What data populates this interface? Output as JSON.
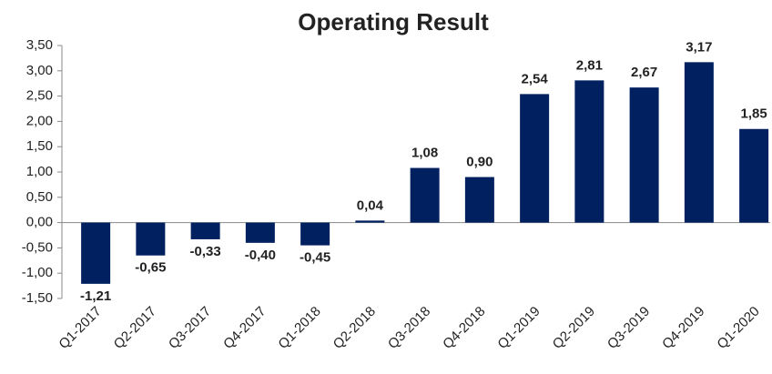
{
  "chart_data": {
    "type": "bar",
    "title": "Operating Result",
    "categories": [
      "Q1-2017",
      "Q2-2017",
      "Q3-2017",
      "Q4-2017",
      "Q1-2018",
      "Q2-2018",
      "Q3-2018",
      "Q4-2018",
      "Q1-2019",
      "Q2-2019",
      "Q3-2019",
      "Q4-2019",
      "Q1-2020"
    ],
    "values": [
      -1.21,
      -0.65,
      -0.33,
      -0.4,
      -0.45,
      0.04,
      1.08,
      0.9,
      2.54,
      2.81,
      2.67,
      3.17,
      1.85
    ],
    "value_labels": [
      "-1,21",
      "-0,65",
      "-0,33",
      "-0,40",
      "-0,45",
      "0,04",
      "1,08",
      "0,90",
      "2,54",
      "2,81",
      "2,67",
      "3,17",
      "1,85"
    ],
    "color": "#002060",
    "ylim": [
      -1.5,
      3.5
    ],
    "yticks": [
      {
        "value": -1.5,
        "label": "-1,50"
      },
      {
        "value": -1.0,
        "label": "-1,00"
      },
      {
        "value": -0.5,
        "label": "-0,50"
      },
      {
        "value": 0,
        "label": "0,00"
      },
      {
        "value": 0.5,
        "label": "0,50"
      },
      {
        "value": 1.0,
        "label": "1,00"
      },
      {
        "value": 1.5,
        "label": "1,50"
      },
      {
        "value": 2.0,
        "label": "2,00"
      },
      {
        "value": 2.5,
        "label": "2,50"
      },
      {
        "value": 3.0,
        "label": "3,00"
      },
      {
        "value": 3.5,
        "label": "3,50"
      }
    ],
    "grid": false
  }
}
